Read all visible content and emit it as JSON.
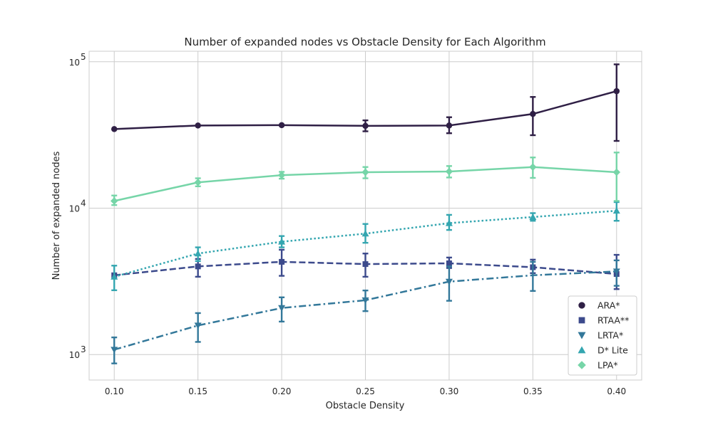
{
  "chart_data": {
    "type": "line",
    "title": "Number of expanded nodes vs Obstacle Density for Each Algorithm",
    "xlabel": "Obstacle Density",
    "ylabel": "Number of expanded nodes",
    "x": [
      0.1,
      0.15,
      0.2,
      0.25,
      0.3,
      0.35,
      0.4
    ],
    "x_tick_labels": [
      "0.10",
      "0.15",
      "0.20",
      "0.25",
      "0.30",
      "0.35",
      "0.40"
    ],
    "xlim": [
      0.085,
      0.415
    ],
    "y_scale": "log",
    "ylim": [
      670,
      118000
    ],
    "y_ticks": [
      {
        "value": 1000,
        "base": "10",
        "exp": "3"
      },
      {
        "value": 10000,
        "base": "10",
        "exp": "4"
      },
      {
        "value": 100000,
        "base": "10",
        "exp": "5"
      }
    ],
    "grid": true,
    "legend_position": "lower-right",
    "series": [
      {
        "name": "ARA*",
        "color": "#2f1f45",
        "dash": "solid",
        "marker": "circle",
        "values": [
          34700,
          36700,
          36900,
          36500,
          36700,
          44000,
          63000
        ],
        "err_low": [
          34700,
          36700,
          36900,
          33500,
          32500,
          31500,
          28800
        ],
        "err_high": [
          34700,
          36700,
          36900,
          39800,
          41800,
          57500,
          96000
        ]
      },
      {
        "name": "RTAA**",
        "color": "#3c4a8c",
        "dash": "dashed",
        "marker": "square",
        "values": [
          3480,
          4000,
          4300,
          4150,
          4200,
          3950,
          3550
        ],
        "err_low": [
          3480,
          3400,
          3450,
          3400,
          3900,
          3600,
          2800
        ],
        "err_high": [
          3480,
          4500,
          5200,
          4900,
          4600,
          4450,
          4800
        ]
      },
      {
        "name": "LRTA*",
        "color": "#33789a",
        "dash": "dashdot",
        "marker": "triangle-down",
        "values": [
          1080,
          1580,
          2080,
          2350,
          3150,
          3480,
          3700
        ],
        "err_low": [
          870,
          1220,
          1680,
          1980,
          2330,
          2720,
          2950
        ],
        "err_high": [
          1310,
          1920,
          2460,
          2740,
          4000,
          4300,
          4400
        ],
        "markers_visible": [
          true,
          true,
          true,
          true,
          true,
          false,
          true
        ]
      },
      {
        "name": "D* Lite",
        "color": "#34a6b0",
        "dash": "dotted",
        "marker": "triangle-up",
        "values": [
          3400,
          4900,
          5900,
          6700,
          7900,
          8700,
          9600
        ],
        "err_low": [
          2750,
          4350,
          5400,
          5800,
          7100,
          8200,
          8200
        ],
        "err_high": [
          4050,
          5400,
          6450,
          7800,
          9000,
          9250,
          11000
        ]
      },
      {
        "name": "LPA*",
        "color": "#76d5a8",
        "dash": "solid",
        "marker": "diamond",
        "values": [
          11200,
          15000,
          16800,
          17600,
          17800,
          19100,
          17600
        ],
        "err_low": [
          10500,
          14100,
          15900,
          16000,
          16200,
          16100,
          11200
        ],
        "err_high": [
          12200,
          16000,
          17700,
          19100,
          19400,
          22200,
          24000
        ]
      }
    ]
  }
}
